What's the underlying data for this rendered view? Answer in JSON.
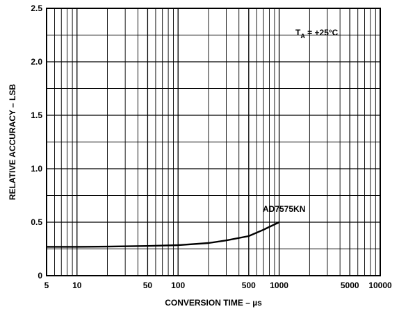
{
  "chart_data": {
    "type": "line",
    "title": "",
    "xlabel": "CONVERSION TIME – µs",
    "ylabel": "RELATIVE ACCURACY – LSB",
    "x_scale": "log",
    "xlim": [
      5,
      10000
    ],
    "ylim": [
      0,
      2.5
    ],
    "grid": true,
    "x_tick_labels": [
      "5",
      "10",
      "50",
      "100",
      "500",
      "1000",
      "5000",
      "10000"
    ],
    "y_tick_labels": [
      "0",
      "0.5",
      "1.0",
      "1.5",
      "2.0",
      "2.5"
    ],
    "annotations": {
      "condition_prefix": "T",
      "condition_subscript": "A",
      "condition_value": " = +25°C"
    },
    "series": [
      {
        "name": "AD7575KN",
        "x": [
          5,
          10,
          20,
          50,
          100,
          200,
          300,
          500,
          700,
          1000
        ],
        "y": [
          0.27,
          0.27,
          0.272,
          0.278,
          0.285,
          0.305,
          0.33,
          0.37,
          0.43,
          0.5
        ]
      }
    ],
    "colors": {
      "line": "#000000",
      "grid": "#000000",
      "background": "#ffffff"
    }
  }
}
